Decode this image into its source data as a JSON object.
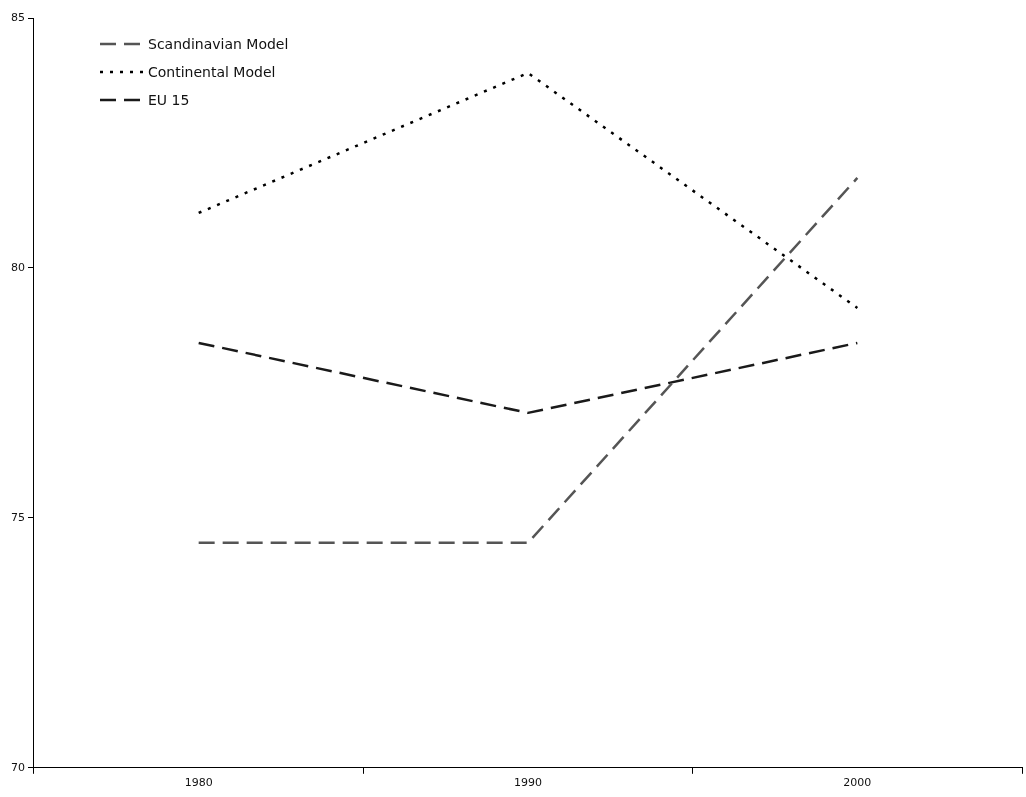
{
  "chart_data": {
    "type": "line",
    "categories": [
      "1980",
      "1990",
      "2000"
    ],
    "series": [
      {
        "name": "Scandinavian Model",
        "color": "#555555",
        "line_style": "dashed",
        "values": [
          74.5,
          74.5,
          81.8
        ]
      },
      {
        "name": "Continental Model",
        "color": "#000000",
        "line_style": "dotted",
        "values": [
          81.1,
          83.9,
          79.2
        ]
      },
      {
        "name": "EU 15",
        "color": "#1a1a1a",
        "line_style": "dashed",
        "values": [
          78.5,
          77.1,
          78.5
        ]
      }
    ],
    "ylim": [
      70,
      85
    ],
    "yticks": [
      70,
      75,
      80,
      85
    ],
    "grid": false,
    "legend": "top left",
    "marker": "none"
  }
}
